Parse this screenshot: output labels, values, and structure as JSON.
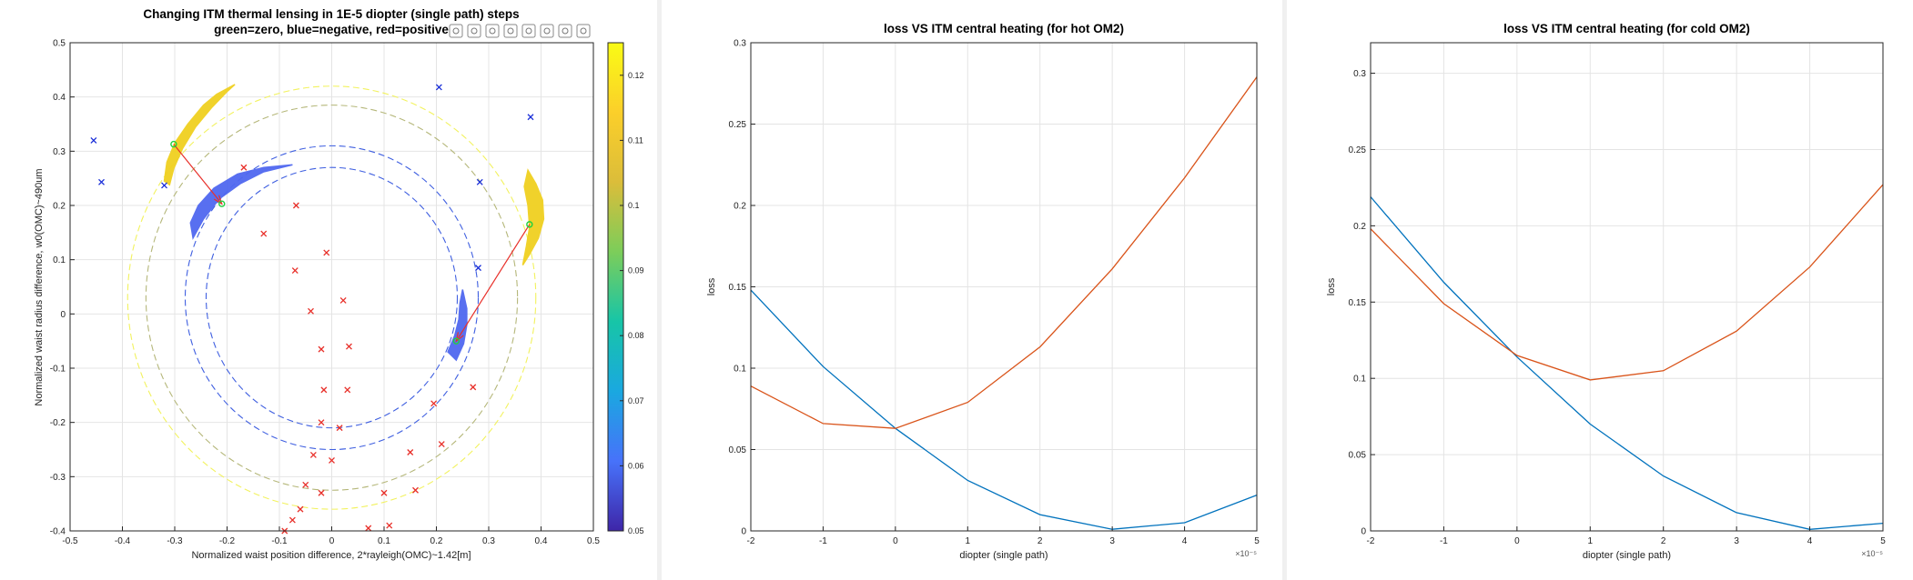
{
  "toolbar": {
    "icons": [
      "brush-icon",
      "data-tip-icon",
      "pan-icon",
      "rotate-icon",
      "hand-icon",
      "zoom-in-icon",
      "zoom-out-icon",
      "home-icon"
    ]
  },
  "chart_data": [
    {
      "type": "scatter",
      "title": "Changing ITM thermal lensing in 1E-5 diopter (single path) steps",
      "subtitle": "green=zero, blue=negative, red=positive",
      "xlabel": "Normalized waist position difference, 2*rayleigh(OMC)~1.42[m]",
      "ylabel": "Normalized waist radius difference, w0(OMC)~490um",
      "xlim": [
        -0.5,
        0.5
      ],
      "ylim": [
        -0.4,
        0.5
      ],
      "xticks": [
        "-0.5",
        "-0.4",
        "-0.3",
        "-0.2",
        "-0.1",
        "0",
        "0.1",
        "0.2",
        "0.3",
        "0.4",
        "0.5"
      ],
      "yticks": [
        "-0.4",
        "-0.3",
        "-0.2",
        "-0.1",
        "0",
        "0.1",
        "0.2",
        "0.3",
        "0.4",
        "0.5"
      ],
      "grid": true,
      "colorbar": {
        "range": [
          0.05,
          0.125
        ],
        "ticks": [
          "0.05",
          "0.06",
          "0.07",
          "0.08",
          "0.09",
          "0.1",
          "0.11",
          "0.12"
        ],
        "colors": [
          "#3e26a8",
          "#4772fa",
          "#1aa8e0",
          "#17c5a7",
          "#7ccd5a",
          "#dbbd3a",
          "#fbcf2a",
          "#f9fb15"
        ]
      },
      "circles": [
        {
          "cx": 0,
          "cy": 0.03,
          "r": 0.39,
          "color": "#f2f25e"
        },
        {
          "cx": 0,
          "cy": 0.03,
          "r": 0.355,
          "color": "#b5b77a"
        },
        {
          "cx": 0,
          "cy": 0.03,
          "r": 0.28,
          "color": "#3f5fe0"
        },
        {
          "cx": 0,
          "cy": 0.03,
          "r": 0.24,
          "color": "#3f5fe0"
        }
      ],
      "green_points": [
        [
          -0.302,
          0.313
        ],
        [
          -0.21,
          0.203
        ],
        [
          0.378,
          0.165
        ],
        [
          0.238,
          -0.05
        ]
      ],
      "arrows": [
        {
          "from": [
            -0.302,
            0.313
          ],
          "to": [
            -0.21,
            0.203
          ]
        },
        {
          "from": [
            0.378,
            0.165
          ],
          "to": [
            0.238,
            -0.05
          ]
        }
      ],
      "blue_markers": [
        [
          -0.455,
          0.32
        ],
        [
          -0.44,
          0.243
        ],
        [
          -0.32,
          0.237
        ],
        [
          0.205,
          0.418
        ],
        [
          0.38,
          0.363
        ],
        [
          0.283,
          0.243
        ],
        [
          0.28,
          0.085
        ]
      ],
      "red_markers": [
        [
          -0.168,
          0.27
        ],
        [
          -0.13,
          0.148
        ],
        [
          -0.068,
          0.2
        ],
        [
          -0.07,
          0.08
        ],
        [
          -0.01,
          0.113
        ],
        [
          0.022,
          0.025
        ],
        [
          -0.04,
          0.005
        ],
        [
          -0.02,
          -0.065
        ],
        [
          0.033,
          -0.06
        ],
        [
          -0.015,
          -0.14
        ],
        [
          0.03,
          -0.14
        ],
        [
          -0.02,
          -0.2
        ],
        [
          0.015,
          -0.21
        ],
        [
          -0.035,
          -0.26
        ],
        [
          0.0,
          -0.27
        ],
        [
          -0.05,
          -0.315
        ],
        [
          -0.02,
          -0.33
        ],
        [
          -0.06,
          -0.36
        ],
        [
          -0.075,
          -0.38
        ],
        [
          -0.09,
          -0.4
        ],
        [
          0.07,
          -0.395
        ],
        [
          0.1,
          -0.33
        ],
        [
          0.11,
          -0.39
        ],
        [
          0.15,
          -0.255
        ],
        [
          0.16,
          -0.325
        ],
        [
          0.195,
          -0.165
        ],
        [
          0.21,
          -0.24
        ],
        [
          0.27,
          -0.135
        ]
      ],
      "bands": [
        {
          "name": "upper-left-warm",
          "color": "#f0d020",
          "pts": [
            [
              -0.32,
              0.245
            ],
            [
              -0.315,
              0.28
            ],
            [
              -0.3,
              0.315
            ],
            [
              -0.275,
              0.35
            ],
            [
              -0.245,
              0.385
            ],
            [
              -0.22,
              0.405
            ],
            [
              -0.185,
              0.423
            ],
            [
              -0.2,
              0.41
            ],
            [
              -0.23,
              0.38
            ],
            [
              -0.26,
              0.345
            ],
            [
              -0.285,
              0.305
            ],
            [
              -0.302,
              0.268
            ],
            [
              -0.31,
              0.238
            ]
          ]
        },
        {
          "name": "upper-left-cool",
          "color": "#5068f0",
          "pts": [
            [
              -0.265,
              0.14
            ],
            [
              -0.245,
              0.175
            ],
            [
              -0.215,
              0.212
            ],
            [
              -0.175,
              0.24
            ],
            [
              -0.13,
              0.262
            ],
            [
              -0.075,
              0.275
            ],
            [
              -0.13,
              0.27
            ],
            [
              -0.18,
              0.258
            ],
            [
              -0.225,
              0.232
            ],
            [
              -0.255,
              0.2
            ],
            [
              -0.27,
              0.168
            ]
          ]
        },
        {
          "name": "right-warm",
          "color": "#f0d020",
          "pts": [
            [
              0.375,
              0.265
            ],
            [
              0.39,
              0.24
            ],
            [
              0.403,
              0.21
            ],
            [
              0.405,
              0.175
            ],
            [
              0.395,
              0.14
            ],
            [
              0.378,
              0.11
            ],
            [
              0.365,
              0.09
            ],
            [
              0.372,
              0.125
            ],
            [
              0.378,
              0.16
            ],
            [
              0.375,
              0.2
            ],
            [
              0.368,
              0.235
            ]
          ]
        },
        {
          "name": "right-cool",
          "color": "#5068f0",
          "pts": [
            [
              0.25,
              0.045
            ],
            [
              0.258,
              0.01
            ],
            [
              0.258,
              -0.02
            ],
            [
              0.252,
              -0.055
            ],
            [
              0.238,
              -0.085
            ],
            [
              0.222,
              -0.07
            ],
            [
              0.235,
              -0.04
            ],
            [
              0.243,
              -0.01
            ],
            [
              0.245,
              0.02
            ]
          ]
        }
      ]
    },
    {
      "type": "line",
      "title": "loss VS ITM central heating (for hot OM2)",
      "xlabel": "diopter (single path)",
      "ylabel": "loss",
      "x_multiplier": "×10⁻⁵",
      "x": [
        -2,
        -1,
        0,
        1,
        2,
        3,
        4,
        5
      ],
      "xlim": [
        -2,
        5
      ],
      "ylim": [
        0,
        0.3
      ],
      "xticks": [
        "-2",
        "-1",
        "0",
        "1",
        "2",
        "3",
        "4",
        "5"
      ],
      "yticks": [
        "0",
        "0.05",
        "0.1",
        "0.15",
        "0.2",
        "0.25",
        "0.3"
      ],
      "grid": true,
      "series": [
        {
          "color": "#0072bd",
          "values": [
            0.148,
            0.101,
            0.063,
            0.031,
            0.01,
            0.001,
            0.005,
            0.022
          ]
        },
        {
          "color": "#d95319",
          "values": [
            0.089,
            0.066,
            0.063,
            0.079,
            0.113,
            0.161,
            0.217,
            0.279
          ]
        }
      ]
    },
    {
      "type": "line",
      "title": "loss VS ITM central heating (for cold OM2)",
      "xlabel": "diopter (single path)",
      "ylabel": "loss",
      "x_multiplier": "×10⁻⁵",
      "x": [
        -2,
        -1,
        0,
        1,
        2,
        3,
        4,
        5
      ],
      "xlim": [
        -2,
        5
      ],
      "ylim": [
        0,
        0.32
      ],
      "xticks": [
        "-2",
        "-1",
        "0",
        "1",
        "2",
        "3",
        "4",
        "5"
      ],
      "yticks": [
        "0",
        "0.05",
        "0.1",
        "0.15",
        "0.2",
        "0.25",
        "0.3"
      ],
      "grid": true,
      "series": [
        {
          "color": "#0072bd",
          "values": [
            0.219,
            0.163,
            0.114,
            0.07,
            0.036,
            0.012,
            0.001,
            0.005
          ]
        },
        {
          "color": "#d95319",
          "values": [
            0.198,
            0.149,
            0.115,
            0.099,
            0.105,
            0.131,
            0.173,
            0.227
          ]
        }
      ]
    }
  ]
}
